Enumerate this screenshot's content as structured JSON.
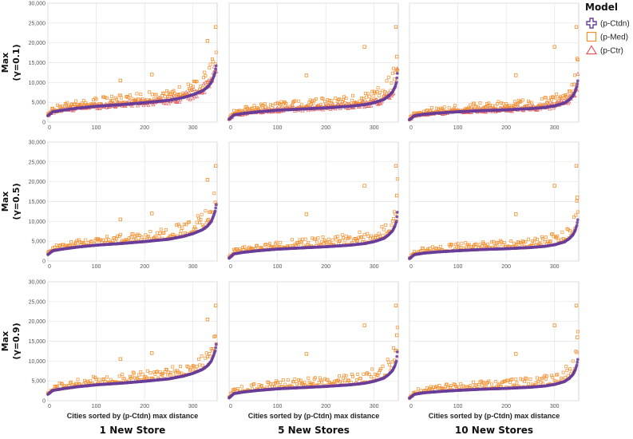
{
  "chart_data": {
    "type": "scatter",
    "title": "",
    "legend": {
      "title": "Model",
      "placement": "top-right",
      "entries": [
        {
          "name": "(p-Ctdn)",
          "color": "#6a3d9a",
          "marker": "plus"
        },
        {
          "name": "(p-Med)",
          "color": "#f28e2b",
          "marker": "square"
        },
        {
          "name": "(p-Ctr)",
          "color": "#e15759",
          "marker": "triangle"
        }
      ]
    },
    "xlabel": "Cities sorted by (p-Ctdn) max distance",
    "xlim": [
      0,
      350
    ],
    "xticks": [
      "0",
      "100",
      "200",
      "300"
    ],
    "ylim": [
      0,
      30000
    ],
    "yticks": [
      "0",
      "5,000",
      "10,000",
      "15,000",
      "20,000",
      "25,000",
      "30,000"
    ],
    "grid": true,
    "columns": [
      "1 New Store",
      "5 New Stores",
      "10 New Stores"
    ],
    "rows": [
      {
        "label_line1": "Max",
        "label_line2": "(γ=0.1)"
      },
      {
        "label_line1": "Max",
        "label_line2": "(γ=0.5)"
      },
      {
        "label_line1": "Max",
        "label_line2": "(γ=0.9)"
      }
    ],
    "ctdn_curve_by_column": [
      {
        "x": [
          0,
          10,
          30,
          60,
          100,
          150,
          200,
          250,
          280,
          300,
          320,
          330,
          338,
          343,
          346,
          348
        ],
        "y": [
          1600,
          2600,
          3000,
          3500,
          4000,
          4400,
          4900,
          5500,
          6200,
          6900,
          7900,
          8800,
          10000,
          11500,
          12600,
          14200
        ]
      },
      {
        "x": [
          0,
          10,
          30,
          60,
          100,
          150,
          200,
          250,
          280,
          300,
          320,
          330,
          338,
          343,
          346,
          348
        ],
        "y": [
          700,
          1800,
          2200,
          2600,
          3000,
          3300,
          3600,
          4000,
          4400,
          4900,
          5700,
          6600,
          7600,
          8800,
          10000,
          12300
        ]
      },
      {
        "x": [
          0,
          10,
          30,
          60,
          100,
          150,
          200,
          250,
          280,
          300,
          320,
          330,
          338,
          343,
          346,
          348
        ],
        "y": [
          600,
          1600,
          2000,
          2300,
          2600,
          2900,
          3100,
          3400,
          3700,
          4100,
          4800,
          5600,
          6600,
          7800,
          9000,
          10400
        ]
      }
    ],
    "med_spread_factor_by_column": [
      1.2,
      1.35,
      1.35
    ],
    "ctr_row_index": 0,
    "med_outliers_by_column": [
      {
        "x": [
          150,
          215,
          330,
          347
        ],
        "y": [
          10500,
          12000,
          20500,
          24000
        ]
      },
      {
        "x": [
          160,
          280,
          345,
          347
        ],
        "y": [
          11800,
          19000,
          24000,
          16500
        ]
      },
      {
        "x": [
          220,
          300,
          345,
          347
        ],
        "y": [
          11800,
          19000,
          24000,
          16000
        ]
      }
    ]
  }
}
